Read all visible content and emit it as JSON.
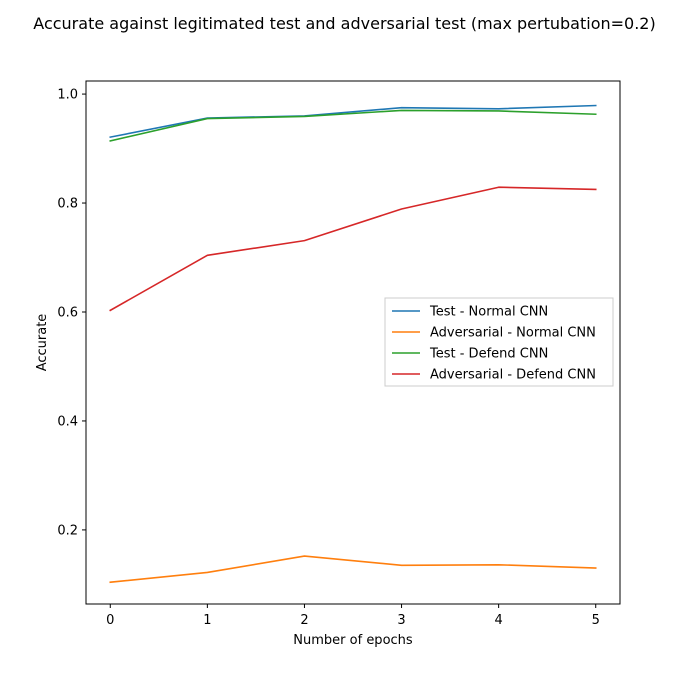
{
  "chart_data": {
    "type": "line",
    "title": "Accurate against legitimated test and adversarial test (max pertubation=0.2)",
    "xlabel": "Number of epochs",
    "ylabel": "Accurate",
    "xlim": [
      -0.25,
      5.25
    ],
    "ylim": [
      0.064,
      1.024
    ],
    "x_ticks": [
      0,
      1,
      2,
      3,
      4,
      5
    ],
    "y_ticks": [
      0.2,
      0.4,
      0.6,
      0.8,
      1.0
    ],
    "y_tick_labels": [
      "0.2",
      "0.4",
      "0.6",
      "0.8",
      "1.0"
    ],
    "grid": false,
    "legend_position": "center-right",
    "x": [
      0,
      1,
      2,
      3,
      4,
      5
    ],
    "series": [
      {
        "name": "Test - Normal CNN",
        "color": "#1f77b4",
        "values": [
          0.921,
          0.956,
          0.96,
          0.975,
          0.973,
          0.979
        ]
      },
      {
        "name": "Adversarial - Normal CNN",
        "color": "#ff7f0e",
        "values": [
          0.104,
          0.122,
          0.152,
          0.135,
          0.136,
          0.13
        ]
      },
      {
        "name": "Test - Defend CNN",
        "color": "#2ca02c",
        "values": [
          0.914,
          0.955,
          0.959,
          0.97,
          0.969,
          0.963
        ]
      },
      {
        "name": "Adversarial - Defend CNN",
        "color": "#d62728",
        "values": [
          0.603,
          0.704,
          0.731,
          0.789,
          0.829,
          0.825
        ]
      }
    ]
  }
}
